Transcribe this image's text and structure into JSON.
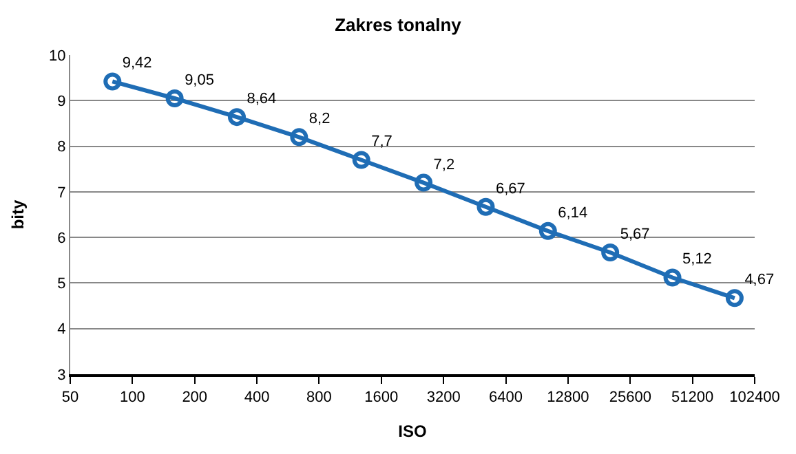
{
  "chart_data": {
    "type": "line",
    "title": "Zakres tonalny",
    "xlabel": "ISO",
    "ylabel": "bity",
    "log": "x",
    "x": [
      80,
      160,
      320,
      640,
      1280,
      2560,
      5120,
      10240,
      20480,
      40960,
      81920
    ],
    "series": [
      {
        "color": "#1f6db5",
        "values": [
          9.42,
          9.05,
          8.64,
          8.2,
          7.7,
          7.2,
          6.67,
          6.14,
          5.67,
          5.12,
          4.67
        ],
        "value_labels": [
          "9,42",
          "9,05",
          "8,64",
          "8,2",
          "7,7",
          "7,2",
          "6,67",
          "6,14",
          "5,67",
          "5,12",
          "4,67"
        ]
      }
    ],
    "xlim": [
      50,
      102400
    ],
    "xticks": [
      50,
      100,
      200,
      400,
      800,
      1600,
      3200,
      6400,
      12800,
      25600,
      51200,
      102400
    ],
    "ylim": [
      3,
      10
    ],
    "yticks": [
      3,
      4,
      5,
      6,
      7,
      8,
      9,
      10
    ],
    "grid": "y",
    "marker": "circle",
    "line_style": "solid",
    "legend": false
  }
}
